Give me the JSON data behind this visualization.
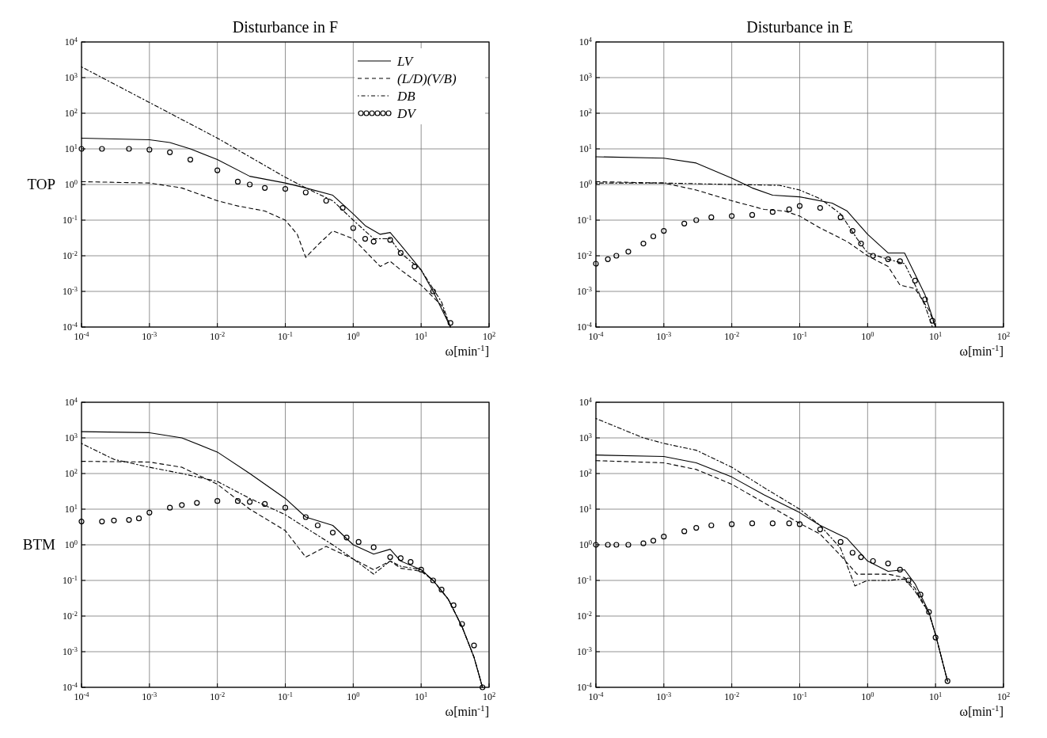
{
  "chart_data": [
    {
      "type": "line",
      "title": "Disturbance in F",
      "ylabel": "TOP",
      "xlabel": "ω[min$^{-1}$]",
      "log": "xy",
      "grid": true,
      "legend": "top right",
      "xlim": [
        0.0001,
        100
      ],
      "ylim": [
        0.0001,
        10000
      ],
      "xticks": [
        {
          "value": 0.0001,
          "label": "10$^{-4}$"
        },
        {
          "value": 0.001,
          "label": "10$^{-3}$"
        },
        {
          "value": 0.01,
          "label": "10$^{-2}$"
        },
        {
          "value": 0.1,
          "label": "10$^{-1}$"
        },
        {
          "value": 1,
          "label": "10$^{0}$"
        },
        {
          "value": 10,
          "label": "10$^{1}$"
        },
        {
          "value": 100,
          "label": "10$^{2}$"
        }
      ],
      "yticks": [
        {
          "value": 0.0001,
          "label": "10$^{-4}$"
        },
        {
          "value": 0.001,
          "label": "10$^{-3}$"
        },
        {
          "value": 0.01,
          "label": "10$^{-2}$"
        },
        {
          "value": 0.1,
          "label": "10$^{-1}$"
        },
        {
          "value": 1,
          "label": "10$^{0}$"
        },
        {
          "value": 10,
          "label": "10$^{1}$"
        },
        {
          "value": 100,
          "label": "10$^{2}$"
        },
        {
          "value": 1000,
          "label": "10$^{3}$"
        },
        {
          "value": 10000,
          "label": "10$^{4}$"
        }
      ],
      "series": [
        {
          "name": "LV",
          "color": "#000000",
          "line_style": "solid",
          "x": [
            0.0001,
            0.001,
            0.002,
            0.004,
            0.01,
            0.03,
            0.1,
            0.2,
            0.5,
            1,
            1.5,
            2.5,
            3.5,
            5,
            10,
            15,
            27
          ],
          "values": [
            20,
            18,
            15,
            10,
            5,
            1.7,
            1.1,
            0.8,
            0.5,
            0.15,
            0.07,
            0.04,
            0.045,
            0.02,
            0.004,
            0.001,
            0.0001
          ]
        },
        {
          "name": "(L/D)(V/B)",
          "color": "#000000",
          "line_style": "dashed",
          "x": [
            0.0001,
            0.001,
            0.003,
            0.01,
            0.02,
            0.05,
            0.1,
            0.15,
            0.2,
            0.3,
            0.5,
            1,
            2.5,
            3.5,
            5,
            10,
            20,
            27
          ],
          "values": [
            1.2,
            1.1,
            0.8,
            0.35,
            0.25,
            0.18,
            0.1,
            0.04,
            0.009,
            0.02,
            0.05,
            0.03,
            0.005,
            0.007,
            0.004,
            0.0015,
            0.0004,
            0.0001
          ]
        },
        {
          "name": "DB",
          "color": "#000000",
          "line_style": "dotted",
          "x": [
            0.0001,
            0.001,
            0.01,
            0.1,
            0.2,
            0.5,
            1,
            2,
            3.5,
            5,
            10,
            20,
            27
          ],
          "values": [
            2000,
            200,
            20,
            1.6,
            0.8,
            0.35,
            0.1,
            0.03,
            0.03,
            0.012,
            0.004,
            0.0005,
            0.0001
          ]
        },
        {
          "name": "DV",
          "type": "scatter",
          "marker": "circle",
          "color": "#000000",
          "x": [
            0.0001,
            0.0002,
            0.0005,
            0.001,
            0.002,
            0.004,
            0.01,
            0.02,
            0.03,
            0.05,
            0.1,
            0.2,
            0.4,
            0.7,
            1,
            1.5,
            2,
            3.5,
            5,
            8,
            15,
            27
          ],
          "values": [
            10,
            10,
            10,
            9.5,
            8,
            5,
            2.5,
            1.2,
            1,
            0.8,
            0.75,
            0.6,
            0.35,
            0.22,
            0.06,
            0.03,
            0.025,
            0.028,
            0.012,
            0.005,
            0.001,
            0.00013
          ]
        }
      ]
    },
    {
      "type": "line",
      "title": "Disturbance in E",
      "xlabel": "ω[min$^{-1}$]",
      "log": "xy",
      "grid": true,
      "xlim": [
        0.0001,
        100
      ],
      "ylim": [
        0.0001,
        10000
      ],
      "xticks": [
        {
          "value": 0.0001,
          "label": "10$^{-4}$"
        },
        {
          "value": 0.001,
          "label": "10$^{-3}$"
        },
        {
          "value": 0.01,
          "label": "10$^{-2}$"
        },
        {
          "value": 0.1,
          "label": "10$^{-1}$"
        },
        {
          "value": 1,
          "label": "10$^{0}$"
        },
        {
          "value": 10,
          "label": "10$^{1}$"
        },
        {
          "value": 100,
          "label": "10$^{2}$"
        }
      ],
      "yticks": [
        {
          "value": 0.0001,
          "label": "10$^{-4}$"
        },
        {
          "value": 0.001,
          "label": "10$^{-3}$"
        },
        {
          "value": 0.01,
          "label": "10$^{-2}$"
        },
        {
          "value": 0.1,
          "label": "10$^{-1}$"
        },
        {
          "value": 1,
          "label": "10$^{0}$"
        },
        {
          "value": 10,
          "label": "10$^{1}$"
        },
        {
          "value": 100,
          "label": "10$^{2}$"
        },
        {
          "value": 1000,
          "label": "10$^{3}$"
        },
        {
          "value": 10000,
          "label": "10$^{4}$"
        }
      ],
      "series": [
        {
          "color": "#000000",
          "line_style": "solid",
          "x": [
            0.0001,
            0.001,
            0.003,
            0.01,
            0.02,
            0.04,
            0.1,
            0.3,
            0.5,
            1,
            2,
            3.5,
            5,
            7,
            10
          ],
          "values": [
            6,
            5.5,
            4,
            1.5,
            0.8,
            0.5,
            0.45,
            0.3,
            0.18,
            0.04,
            0.012,
            0.012,
            0.003,
            0.0008,
            0.0001
          ]
        },
        {
          "color": "#000000",
          "line_style": "dashed",
          "x": [
            0.0001,
            0.001,
            0.003,
            0.01,
            0.03,
            0.06,
            0.1,
            0.2,
            0.5,
            1,
            2,
            3,
            5,
            8,
            10
          ],
          "values": [
            1.2,
            1.1,
            0.7,
            0.35,
            0.2,
            0.18,
            0.13,
            0.06,
            0.025,
            0.01,
            0.005,
            0.0015,
            0.0012,
            0.0003,
            0.0001
          ]
        },
        {
          "color": "#000000",
          "line_style": "dotted",
          "x": [
            0.0001,
            0.001,
            0.01,
            0.05,
            0.1,
            0.2,
            0.4,
            0.7,
            1,
            2,
            3.5,
            5,
            7,
            9
          ],
          "values": [
            1.1,
            1.1,
            1,
            0.95,
            0.7,
            0.4,
            0.15,
            0.03,
            0.012,
            0.008,
            0.006,
            0.0015,
            0.0004,
            0.0001
          ]
        },
        {
          "type": "scatter",
          "marker": "circle",
          "color": "#000000",
          "x": [
            0.0001,
            0.00015,
            0.0002,
            0.0003,
            0.0005,
            0.0007,
            0.001,
            0.002,
            0.003,
            0.005,
            0.01,
            0.02,
            0.04,
            0.07,
            0.1,
            0.2,
            0.4,
            0.6,
            0.8,
            1.2,
            2,
            3,
            5,
            7,
            9
          ],
          "values": [
            0.006,
            0.008,
            0.01,
            0.013,
            0.022,
            0.035,
            0.05,
            0.08,
            0.1,
            0.12,
            0.13,
            0.14,
            0.17,
            0.2,
            0.25,
            0.22,
            0.12,
            0.05,
            0.022,
            0.01,
            0.008,
            0.007,
            0.002,
            0.0006,
            0.00015
          ]
        }
      ]
    },
    {
      "type": "line",
      "ylabel": "BTM",
      "xlabel": "ω[min$^{-1}$]",
      "log": "xy",
      "grid": true,
      "xlim": [
        0.0001,
        100
      ],
      "ylim": [
        0.0001,
        10000
      ],
      "xticks": [
        {
          "value": 0.0001,
          "label": "10$^{-4}$"
        },
        {
          "value": 0.001,
          "label": "10$^{-3}$"
        },
        {
          "value": 0.01,
          "label": "10$^{-2}$"
        },
        {
          "value": 0.1,
          "label": "10$^{-1}$"
        },
        {
          "value": 1,
          "label": "10$^{0}$"
        },
        {
          "value": 10,
          "label": "10$^{1}$"
        },
        {
          "value": 100,
          "label": "10$^{2}$"
        }
      ],
      "yticks": [
        {
          "value": 0.0001,
          "label": "10$^{-4}$"
        },
        {
          "value": 0.001,
          "label": "10$^{-3}$"
        },
        {
          "value": 0.01,
          "label": "10$^{-2}$"
        },
        {
          "value": 0.1,
          "label": "10$^{-1}$"
        },
        {
          "value": 1,
          "label": "10$^{0}$"
        },
        {
          "value": 10,
          "label": "10$^{1}$"
        },
        {
          "value": 100,
          "label": "10$^{2}$"
        },
        {
          "value": 1000,
          "label": "10$^{3}$"
        },
        {
          "value": 10000,
          "label": "10$^{4}$"
        }
      ],
      "series": [
        {
          "color": "#000000",
          "line_style": "solid",
          "x": [
            0.0001,
            0.001,
            0.003,
            0.01,
            0.03,
            0.1,
            0.2,
            0.5,
            1,
            2,
            3.5,
            5,
            10,
            15,
            25,
            40,
            60,
            80
          ],
          "values": [
            1500,
            1400,
            1000,
            400,
            100,
            20,
            6,
            3.5,
            1,
            0.55,
            0.75,
            0.35,
            0.2,
            0.1,
            0.03,
            0.005,
            0.0007,
            0.0001
          ]
        },
        {
          "color": "#000000",
          "line_style": "dashed",
          "x": [
            0.0001,
            0.001,
            0.003,
            0.01,
            0.03,
            0.1,
            0.2,
            0.4,
            1,
            2,
            3.5,
            5,
            10,
            15,
            25,
            40,
            60,
            80
          ],
          "values": [
            220,
            210,
            150,
            50,
            10,
            2.5,
            0.45,
            0.9,
            0.4,
            0.2,
            0.35,
            0.22,
            0.18,
            0.1,
            0.03,
            0.005,
            0.0007,
            0.0001
          ]
        },
        {
          "color": "#000000",
          "line_style": "dotted",
          "x": [
            0.0001,
            0.0003,
            0.001,
            0.003,
            0.01,
            0.03,
            0.1,
            0.2,
            0.5,
            1,
            2,
            3.5,
            5,
            10,
            15,
            25,
            40,
            60,
            80
          ],
          "values": [
            700,
            250,
            150,
            100,
            60,
            20,
            7,
            3,
            1,
            0.4,
            0.15,
            0.35,
            0.25,
            0.2,
            0.1,
            0.03,
            0.005,
            0.0007,
            0.0001
          ]
        },
        {
          "type": "scatter",
          "marker": "circle",
          "color": "#000000",
          "x": [
            0.0001,
            0.0002,
            0.0003,
            0.0005,
            0.0007,
            0.001,
            0.002,
            0.003,
            0.005,
            0.01,
            0.02,
            0.03,
            0.05,
            0.1,
            0.2,
            0.3,
            0.5,
            0.8,
            1.2,
            2,
            3.5,
            5,
            7,
            10,
            15,
            20,
            30,
            40,
            60,
            80
          ],
          "values": [
            4.5,
            4.5,
            4.8,
            5,
            5.5,
            8,
            11,
            13,
            15,
            17,
            17,
            16,
            14,
            11,
            6,
            3.5,
            2.2,
            1.6,
            1.2,
            0.85,
            0.45,
            0.42,
            0.33,
            0.2,
            0.1,
            0.055,
            0.02,
            0.006,
            0.0015,
            0.0001
          ]
        }
      ]
    },
    {
      "type": "line",
      "xlabel": "ω[min$^{-1}$]",
      "log": "xy",
      "grid": true,
      "xlim": [
        0.0001,
        100
      ],
      "ylim": [
        0.0001,
        10000
      ],
      "xticks": [
        {
          "value": 0.0001,
          "label": "10$^{-4}$"
        },
        {
          "value": 0.001,
          "label": "10$^{-3}$"
        },
        {
          "value": 0.01,
          "label": "10$^{-2}$"
        },
        {
          "value": 0.1,
          "label": "10$^{-1}$"
        },
        {
          "value": 1,
          "label": "10$^{0}$"
        },
        {
          "value": 10,
          "label": "10$^{1}$"
        },
        {
          "value": 100,
          "label": "10$^{2}$"
        }
      ],
      "yticks": [
        {
          "value": 0.0001,
          "label": "10$^{-4}$"
        },
        {
          "value": 0.001,
          "label": "10$^{-3}$"
        },
        {
          "value": 0.01,
          "label": "10$^{-2}$"
        },
        {
          "value": 0.1,
          "label": "10$^{-1}$"
        },
        {
          "value": 1,
          "label": "10$^{0}$"
        },
        {
          "value": 10,
          "label": "10$^{1}$"
        },
        {
          "value": 100,
          "label": "10$^{2}$"
        },
        {
          "value": 1000,
          "label": "10$^{3}$"
        },
        {
          "value": 10000,
          "label": "10$^{4}$"
        }
      ],
      "series": [
        {
          "color": "#000000",
          "line_style": "solid",
          "x": [
            0.0001,
            0.001,
            0.003,
            0.01,
            0.03,
            0.1,
            0.2,
            0.5,
            1,
            2,
            3.5,
            5,
            8,
            10,
            15
          ],
          "values": [
            330,
            300,
            200,
            80,
            25,
            8,
            3.5,
            1.5,
            0.35,
            0.18,
            0.2,
            0.08,
            0.013,
            0.003,
            0.00015
          ]
        },
        {
          "color": "#000000",
          "line_style": "dashed",
          "x": [
            0.0001,
            0.001,
            0.003,
            0.01,
            0.03,
            0.1,
            0.2,
            0.4,
            0.7,
            1,
            2,
            3.5,
            5,
            8,
            10,
            15
          ],
          "values": [
            230,
            200,
            130,
            50,
            15,
            4,
            2,
            0.5,
            0.15,
            0.15,
            0.15,
            0.12,
            0.06,
            0.012,
            0.003,
            0.00015
          ]
        },
        {
          "color": "#000000",
          "line_style": "dotted",
          "x": [
            0.0001,
            0.0005,
            0.001,
            0.003,
            0.01,
            0.03,
            0.1,
            0.2,
            0.4,
            0.65,
            1,
            2,
            3.5,
            5,
            8,
            10,
            15
          ],
          "values": [
            3500,
            1000,
            700,
            450,
            150,
            40,
            10,
            3.5,
            0.8,
            0.07,
            0.1,
            0.1,
            0.11,
            0.05,
            0.012,
            0.003,
            0.00015
          ]
        },
        {
          "type": "scatter",
          "marker": "circle",
          "color": "#000000",
          "x": [
            0.0001,
            0.00015,
            0.0002,
            0.0003,
            0.0005,
            0.0007,
            0.001,
            0.002,
            0.003,
            0.005,
            0.01,
            0.02,
            0.04,
            0.07,
            0.1,
            0.2,
            0.4,
            0.6,
            0.8,
            1.2,
            2,
            3,
            4,
            6,
            8,
            10,
            15
          ],
          "values": [
            1,
            1,
            1,
            1,
            1.1,
            1.3,
            1.7,
            2.4,
            3,
            3.5,
            3.8,
            4,
            4,
            4,
            3.8,
            2.7,
            1.2,
            0.6,
            0.45,
            0.35,
            0.3,
            0.2,
            0.1,
            0.04,
            0.013,
            0.0025,
            0.00015
          ]
        }
      ]
    }
  ]
}
